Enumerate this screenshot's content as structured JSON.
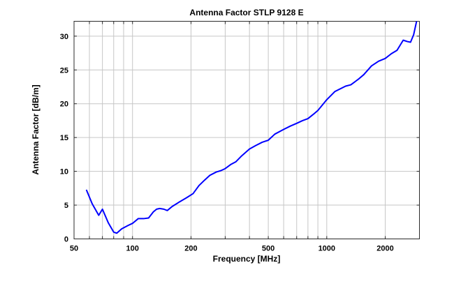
{
  "chart_data": {
    "type": "line",
    "title": "Antenna Factor STLP 9128 E",
    "xlabel": "Frequency [MHz]",
    "ylabel": "Antenna Factor [dB/m]",
    "x_scale": "log",
    "xlim": [
      50,
      3000
    ],
    "ylim": [
      0,
      32.2
    ],
    "x_major_ticks": [
      50,
      100,
      200,
      500,
      1000,
      2000
    ],
    "x_gridlines": [
      50,
      60,
      70,
      80,
      90,
      100,
      200,
      300,
      400,
      500,
      600,
      700,
      800,
      900,
      1000,
      2000,
      3000
    ],
    "y_ticks": [
      0,
      5,
      10,
      15,
      20,
      25,
      30
    ],
    "grid": true,
    "legend_position": "none",
    "line_color": "#0000ff",
    "grid_color": "#c6c6c6",
    "axis_color": "#2b2b2b",
    "series": [
      {
        "name": "Antenna Factor",
        "x": [
          58,
          62,
          67,
          70,
          75,
          80,
          83,
          88,
          95,
          100,
          107,
          114,
          121,
          128,
          133,
          138,
          145,
          151,
          160,
          175,
          190,
          205,
          220,
          235,
          250,
          270,
          285,
          300,
          320,
          340,
          365,
          400,
          430,
          465,
          500,
          540,
          600,
          650,
          700,
          750,
          800,
          850,
          900,
          1000,
          1100,
          1250,
          1330,
          1450,
          1550,
          1700,
          1850,
          2000,
          2150,
          2300,
          2475,
          2600,
          2700,
          2800,
          2900
        ],
        "y": [
          7.2,
          5.2,
          3.5,
          4.4,
          2.4,
          1.0,
          0.85,
          1.5,
          2.0,
          2.3,
          3.0,
          3.0,
          3.1,
          4.0,
          4.4,
          4.5,
          4.4,
          4.2,
          4.8,
          5.5,
          6.1,
          6.7,
          7.9,
          8.7,
          9.4,
          9.9,
          10.1,
          10.4,
          11.0,
          11.4,
          12.3,
          13.3,
          13.8,
          14.3,
          14.6,
          15.5,
          16.2,
          16.7,
          17.1,
          17.5,
          17.8,
          18.4,
          19.0,
          20.6,
          21.8,
          22.6,
          22.8,
          23.6,
          24.3,
          25.6,
          26.3,
          26.7,
          27.4,
          27.9,
          29.4,
          29.2,
          29.1,
          30.2,
          32.2
        ]
      }
    ]
  }
}
